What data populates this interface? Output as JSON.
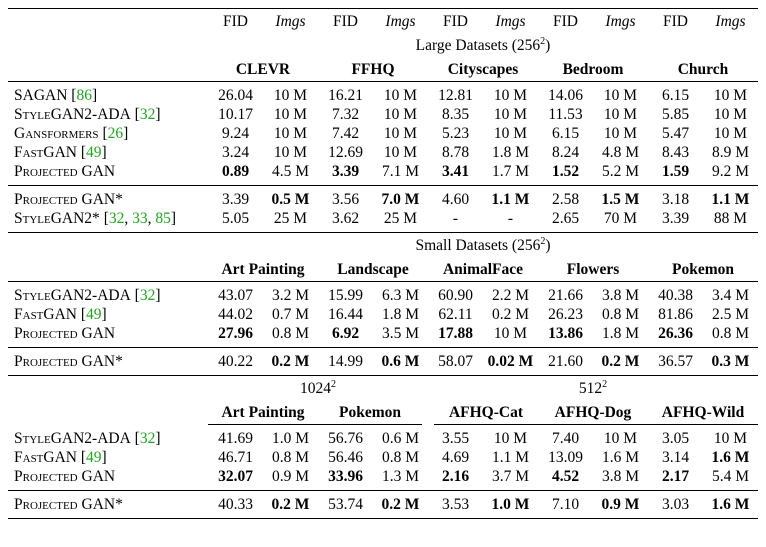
{
  "header": {
    "fid": "FID",
    "imgs": "Imgs"
  },
  "large": {
    "title": "Large Datasets (256",
    "sup": "2",
    "close": ")",
    "datasets": [
      "CLEVR",
      "FFHQ",
      "Cityscapes",
      "Bedroom",
      "Church"
    ],
    "rows": [
      {
        "name": "SAGAN",
        "refs": [
          "86"
        ],
        "cells": [
          "26.04",
          "10 M",
          "16.21",
          "10 M",
          "12.81",
          "10 M",
          "14.06",
          "10 M",
          "6.15",
          "10 M"
        ]
      },
      {
        "name": "StyleGAN2-ADA",
        "refs": [
          "32"
        ],
        "cells": [
          "10.17",
          "10 M",
          "7.32",
          "10 M",
          "8.35",
          "10 M",
          "11.53",
          "10 M",
          "5.85",
          "10 M"
        ]
      },
      {
        "name": "Gansformers",
        "refs": [
          "26"
        ],
        "cells": [
          "9.24",
          "10 M",
          "7.42",
          "10 M",
          "5.23",
          "10 M",
          "6.15",
          "10 M",
          "5.47",
          "10 M"
        ]
      },
      {
        "name": "FastGAN",
        "refs": [
          "49"
        ],
        "cells": [
          "3.24",
          "10 M",
          "12.69",
          "10 M",
          "8.78",
          "1.8 M",
          "8.24",
          "4.8 M",
          "8.43",
          "8.9 M"
        ]
      },
      {
        "name": "Projected GAN",
        "refs": [],
        "cells": [
          "0.89",
          "4.5 M",
          "3.39",
          "7.1 M",
          "3.41",
          "1.7 M",
          "1.52",
          "5.2 M",
          "1.59",
          "9.2 M"
        ],
        "bold": [
          0,
          2,
          4,
          6,
          8
        ]
      }
    ],
    "rows2": [
      {
        "name": "Projected GAN*",
        "refs": [],
        "cells": [
          "3.39",
          "0.5 M",
          "3.56",
          "7.0 M",
          "4.60",
          "1.1 M",
          "2.58",
          "1.5 M",
          "3.18",
          "1.1 M"
        ],
        "bold": [
          1,
          3,
          5,
          7,
          9
        ]
      },
      {
        "name": "StyleGAN2*",
        "refs": [
          "32",
          "33",
          "85"
        ],
        "cells": [
          "5.05",
          "25 M",
          "3.62",
          "25 M",
          "-",
          "-",
          "2.65",
          "70 M",
          "3.39",
          "88 M"
        ]
      }
    ]
  },
  "small": {
    "title": "Small Datasets (256",
    "sup": "2",
    "close": ")",
    "datasets": [
      "Art Painting",
      "Landscape",
      "AnimalFace",
      "Flowers",
      "Pokemon"
    ],
    "rows": [
      {
        "name": "StyleGAN2-ADA",
        "refs": [
          "32"
        ],
        "cells": [
          "43.07",
          "3.2 M",
          "15.99",
          "6.3 M",
          "60.90",
          "2.2 M",
          "21.66",
          "3.8 M",
          "40.38",
          "3.4 M"
        ]
      },
      {
        "name": "FastGAN",
        "refs": [
          "49"
        ],
        "cells": [
          "44.02",
          "0.7 M",
          "16.44",
          "1.8 M",
          "62.11",
          "0.2 M",
          "26.23",
          "0.8 M",
          "81.86",
          "2.5 M"
        ]
      },
      {
        "name": "Projected GAN",
        "refs": [],
        "cells": [
          "27.96",
          "0.8 M",
          "6.92",
          "3.5 M",
          "17.88",
          "10 M",
          "13.86",
          "1.8 M",
          "26.36",
          "0.8 M"
        ],
        "bold": [
          0,
          2,
          4,
          6,
          8
        ]
      }
    ],
    "rows2": [
      {
        "name": "Projected GAN*",
        "refs": [],
        "cells": [
          "40.22",
          "0.2 M",
          "14.99",
          "0.6 M",
          "58.07",
          "0.02 M",
          "21.60",
          "0.2 M",
          "36.57",
          "0.3 M"
        ],
        "bold": [
          1,
          3,
          5,
          7,
          9
        ]
      }
    ]
  },
  "hires": {
    "res1": "1024",
    "res1_sup": "2",
    "res2": "512",
    "res2_sup": "2",
    "datasets": [
      "Art Painting",
      "Pokemon",
      "AFHQ-Cat",
      "AFHQ-Dog",
      "AFHQ-Wild"
    ],
    "rows": [
      {
        "name": "StyleGAN2-ADA",
        "refs": [
          "32"
        ],
        "cells": [
          "41.69",
          "1.0 M",
          "56.76",
          "0.6 M",
          "3.55",
          "10 M",
          "7.40",
          "10 M",
          "3.05",
          "10 M"
        ]
      },
      {
        "name": "FastGAN",
        "refs": [
          "49"
        ],
        "cells": [
          "46.71",
          "0.8 M",
          "56.46",
          "0.8 M",
          "4.69",
          "1.1 M",
          "13.09",
          "1.6 M",
          "3.14",
          "1.6 M"
        ],
        "bold": [
          9
        ]
      },
      {
        "name": "Projected GAN",
        "refs": [],
        "cells": [
          "32.07",
          "0.9 M",
          "33.96",
          "1.3 M",
          "2.16",
          "3.7 M",
          "4.52",
          "3.8 M",
          "2.17",
          "5.4 M"
        ],
        "bold": [
          0,
          2,
          4,
          6,
          8
        ]
      }
    ],
    "rows2": [
      {
        "name": "Projected GAN*",
        "refs": [],
        "cells": [
          "40.33",
          "0.2 M",
          "53.74",
          "0.2 M",
          "3.53",
          "1.0 M",
          "7.10",
          "0.9 M",
          "3.03",
          "1.6 M"
        ],
        "bold": [
          1,
          3,
          5,
          7,
          9
        ]
      }
    ]
  }
}
